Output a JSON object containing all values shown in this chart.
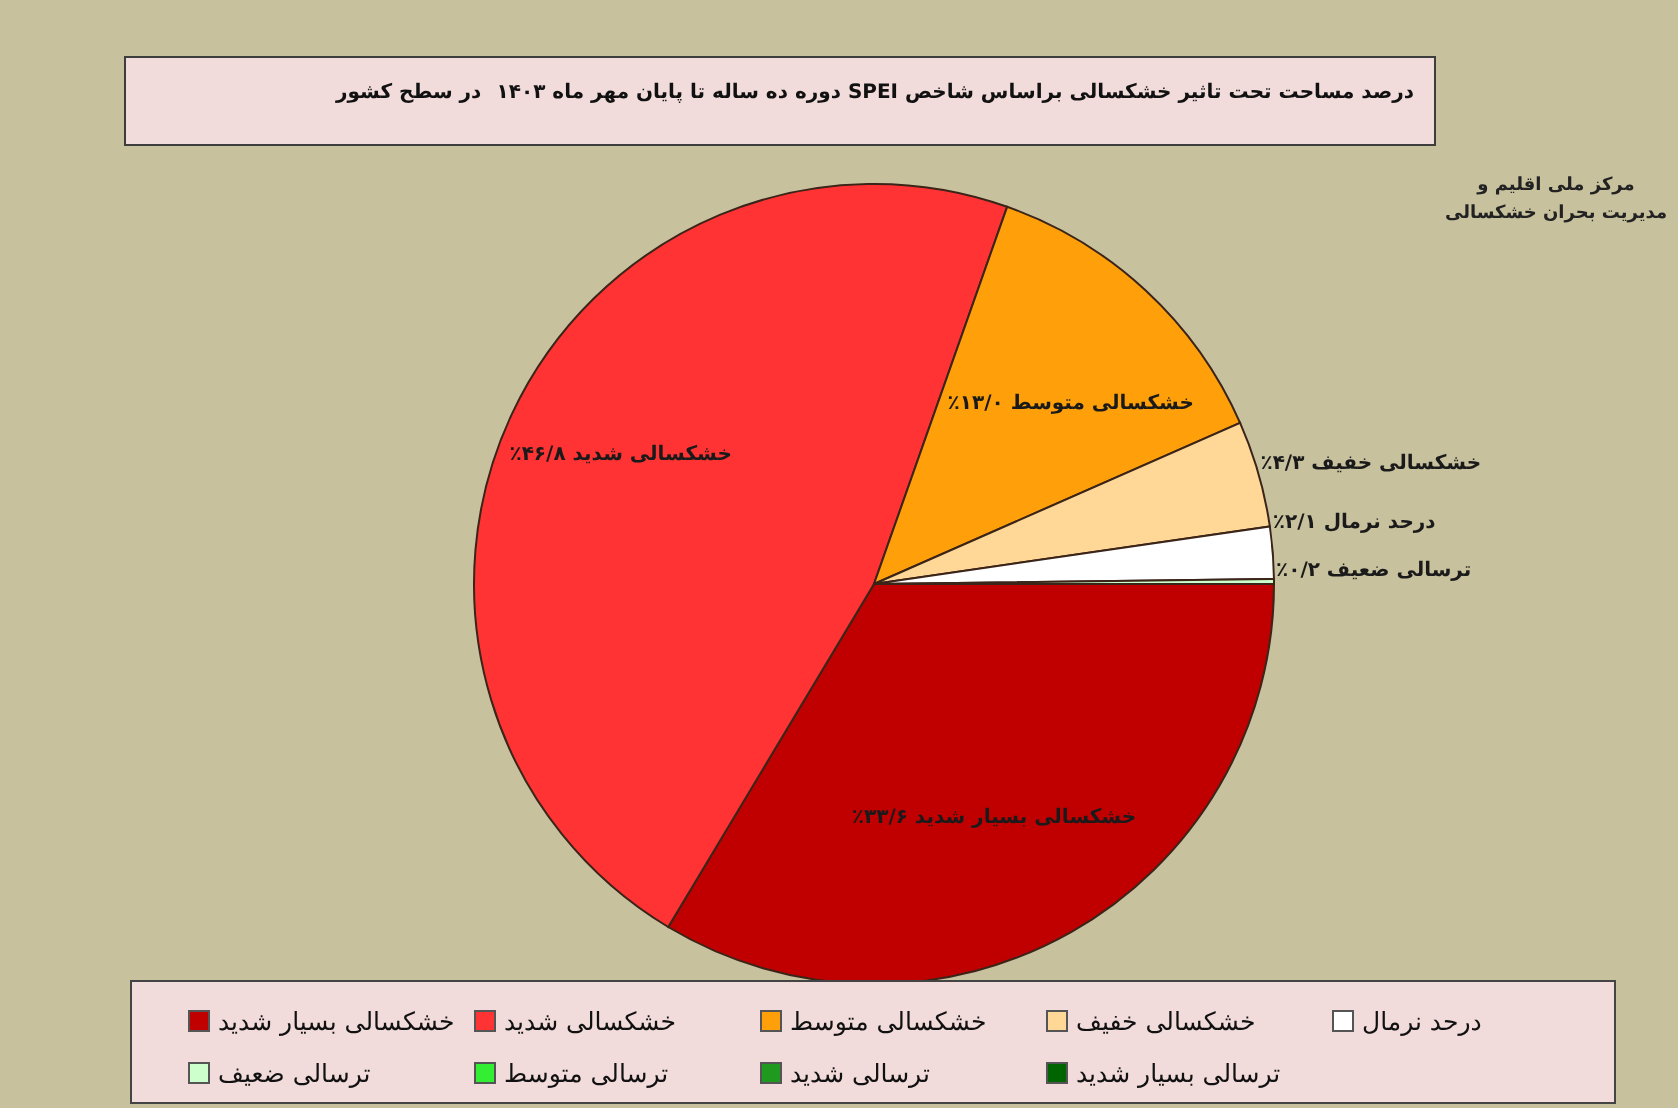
{
  "chart_data": {
    "type": "pie",
    "title": "درصد مساحت تحت تاثیر خشکسالی براساس شاخص SPEI دوره ده ساله تا پایان مهر ماه ۱۴۰۳",
    "subtitle": "در سطح کشور",
    "categories": [
      "خشکسالی بسیار شدید",
      "خشکسالی شدید",
      "خشکسالی متوسط",
      "خشکسالی خفیف",
      "درحد نرمال",
      "ترسالی ضعیف",
      "ترسالی متوسط",
      "ترسالی شدید",
      "ترسالی بسیار شدید"
    ],
    "values": [
      33.6,
      46.8,
      13.0,
      4.3,
      2.1,
      0.2,
      0,
      0,
      0
    ],
    "colors": [
      "#c00000",
      "#ff3333",
      "#ffa00a",
      "#ffd898",
      "#ffffff",
      "#ccffcc",
      "#33ee33",
      "#1f9a1f",
      "#006400"
    ],
    "value_labels": [
      "خشکسالی بسیار شدید ۳۳/۶٪",
      "خشکسالی شدید ۴۶/۸٪",
      "خشکسالی متوسط ۱۳/۰٪",
      "خشکسالی خفیف ۴/۳٪",
      "درحد نرمال ۲/۱٪",
      "ترسالی ضعیف ۰/۲٪",
      null,
      null,
      null
    ],
    "legend": "bottom",
    "annotations": [
      "مرکز ملی اقلیم و\nمدیریت بحران خشکسالی"
    ]
  }
}
